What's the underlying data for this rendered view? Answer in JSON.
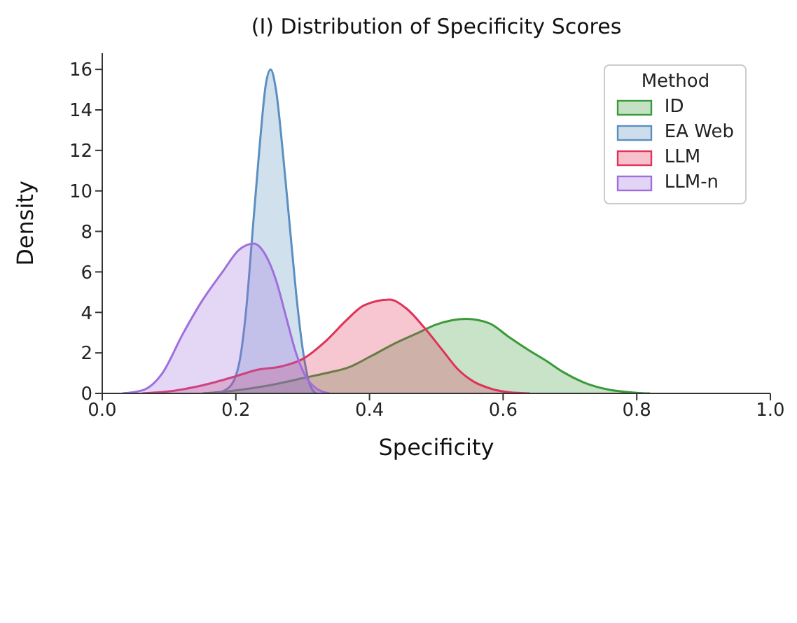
{
  "chart_data": {
    "type": "area",
    "title": "(I) Distribution of Specificity Scores",
    "xlabel": "Specificity",
    "ylabel": "Density",
    "legend_title": "Method",
    "legend": "top right",
    "grid": false,
    "xlim": [
      0,
      1
    ],
    "xticks": [
      {
        "value": 0,
        "label": "0.0"
      },
      {
        "value": 0.2,
        "label": "0.2"
      },
      {
        "value": 0.4,
        "label": "0.4"
      },
      {
        "value": 0.6,
        "label": "0.6"
      },
      {
        "value": 0.8,
        "label": "0.8"
      },
      {
        "value": 1,
        "label": "1.0"
      }
    ],
    "ylim": [
      0,
      16.8
    ],
    "yticks": [
      0,
      2,
      4,
      6,
      8,
      10,
      12,
      14,
      16
    ],
    "series": [
      {
        "name": "ID",
        "color": "#3a9a3a",
        "x": [
          0.15,
          0.2,
          0.25,
          0.3,
          0.335,
          0.37,
          0.4,
          0.44,
          0.47,
          0.5,
          0.545,
          0.58,
          0.608,
          0.64,
          0.665,
          0.69,
          0.72,
          0.76,
          0.8,
          0.82
        ],
        "values": [
          0,
          0.15,
          0.4,
          0.75,
          1.0,
          1.3,
          1.8,
          2.5,
          2.95,
          3.4,
          3.68,
          3.45,
          2.8,
          2.1,
          1.6,
          1.05,
          0.55,
          0.17,
          0.03,
          0
        ]
      },
      {
        "name": "EA Web",
        "color": "#5b8fc0",
        "x": [
          0.17,
          0.19,
          0.205,
          0.215,
          0.225,
          0.235,
          0.245,
          0.252,
          0.26,
          0.27,
          0.28,
          0.29,
          0.3,
          0.31,
          0.32
        ],
        "values": [
          0,
          0.3,
          1.5,
          4,
          8,
          12,
          15.3,
          16,
          15,
          12,
          8.5,
          5,
          2.2,
          0.5,
          0
        ]
      },
      {
        "name": "LLM",
        "color": "#e0325a",
        "x": [
          0.06,
          0.1,
          0.15,
          0.2,
          0.23,
          0.27,
          0.3,
          0.335,
          0.365,
          0.392,
          0.43,
          0.455,
          0.482,
          0.51,
          0.532,
          0.555,
          0.58,
          0.61,
          0.64
        ],
        "values": [
          0,
          0.1,
          0.4,
          0.85,
          1.15,
          1.35,
          1.7,
          2.6,
          3.6,
          4.35,
          4.63,
          4.2,
          3.25,
          2.1,
          1.2,
          0.6,
          0.25,
          0.05,
          0
        ]
      },
      {
        "name": "LLM-n",
        "color": "#9f6fdd",
        "x": [
          0.03,
          0.06,
          0.09,
          0.12,
          0.15,
          0.18,
          0.205,
          0.227,
          0.245,
          0.26,
          0.275,
          0.29,
          0.305,
          0.32,
          0.34
        ],
        "values": [
          0,
          0.15,
          1.0,
          2.9,
          4.6,
          6.0,
          7.1,
          7.4,
          6.8,
          5.6,
          3.8,
          2.0,
          0.8,
          0.25,
          0
        ]
      }
    ]
  }
}
